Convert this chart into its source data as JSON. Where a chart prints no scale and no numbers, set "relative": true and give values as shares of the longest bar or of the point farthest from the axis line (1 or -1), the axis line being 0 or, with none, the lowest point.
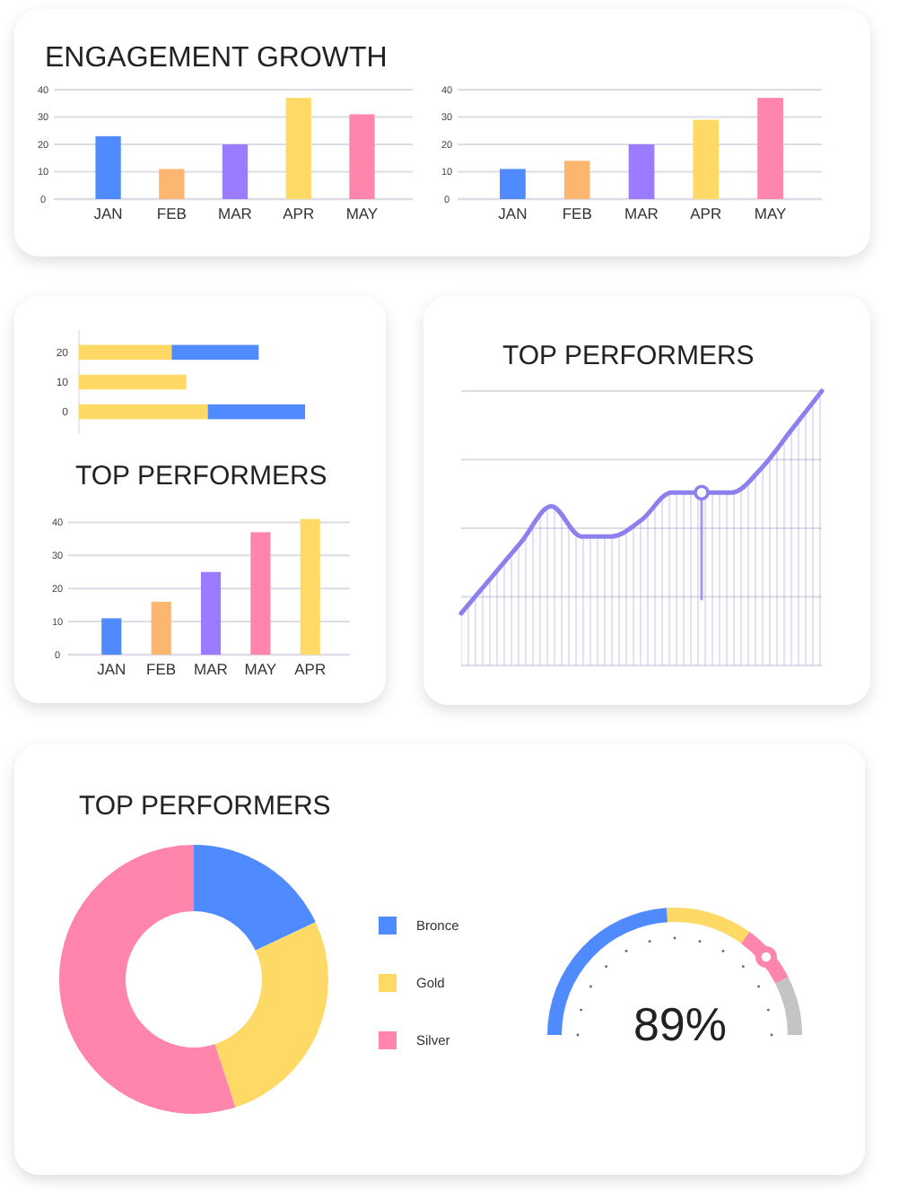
{
  "chart_data": [
    {
      "type": "bar",
      "title": "ENGAGEMENT GROWTH",
      "categories": [
        "JAN",
        "FEB",
        "MAR",
        "APR",
        "MAY"
      ],
      "values": [
        23,
        11,
        20,
        37,
        31
      ],
      "colors": [
        "#4f8bff",
        "#fdb670",
        "#9b7bff",
        "#ffd966",
        "#ff85ad"
      ],
      "ylim": [
        0,
        40
      ],
      "yticks": [
        0,
        10,
        20,
        30,
        40
      ],
      "grid": "y"
    },
    {
      "type": "bar",
      "categories": [
        "JAN",
        "FEB",
        "MAR",
        "APR",
        "MAY"
      ],
      "values": [
        11,
        14,
        20,
        29,
        37
      ],
      "colors": [
        "#4f8bff",
        "#fdb670",
        "#9b7bff",
        "#ffd966",
        "#ff85ad"
      ],
      "ylim": [
        0,
        40
      ],
      "yticks": [
        0,
        10,
        20,
        30,
        40
      ],
      "grid": "y"
    },
    {
      "type": "bar",
      "orientation": "horizontal",
      "stacked": true,
      "relative": true,
      "categories": [
        "20",
        "10",
        "0"
      ],
      "series": [
        {
          "color": "#ffd966",
          "values": [
            0.41,
            0.475,
            0.57
          ]
        },
        {
          "color": "#4f8bff",
          "values": [
            0.385,
            null,
            0.43
          ]
        }
      ]
    },
    {
      "type": "bar",
      "title": "TOP PERFORMERS",
      "categories": [
        "JAN",
        "FEB",
        "MAR",
        "MAY",
        "APR"
      ],
      "values": [
        11,
        16,
        25,
        37,
        41
      ],
      "colors": [
        "#4f8bff",
        "#fdb670",
        "#9b7bff",
        "#ff85ad",
        "#ffd966"
      ],
      "ylim": [
        0,
        42
      ],
      "yticks": [
        0,
        10,
        20,
        30,
        40
      ],
      "grid": "y"
    },
    {
      "type": "area",
      "title": "TOP PERFORMERS",
      "relative": true,
      "categories": [
        null,
        null,
        null,
        null,
        null,
        null,
        null,
        null,
        null,
        null,
        null,
        null,
        null
      ],
      "values": [
        0.19,
        0.32,
        0.45,
        0.58,
        0.47,
        0.47,
        0.53,
        0.63,
        0.63,
        0.63,
        0.72,
        0.86,
        1
      ],
      "color": "#8c80ee",
      "grid": true
    },
    {
      "type": "donut",
      "title": "TOP PERFORMERS",
      "categories": [
        "Bronce",
        "Gold",
        "Silver"
      ],
      "values": [
        18,
        27,
        55
      ],
      "colors": [
        "#4f8bff",
        "#ffd966",
        "#ff85ad"
      ],
      "legend": "right"
    },
    {
      "type": "donut",
      "categories": [
        null,
        null,
        null,
        null
      ],
      "values": [
        48,
        22,
        15,
        15
      ],
      "colors": [
        "#4f8bff",
        "#ffd966",
        "#ff85ad",
        "#c4c4c4"
      ],
      "annotations": [
        "89%"
      ]
    }
  ]
}
